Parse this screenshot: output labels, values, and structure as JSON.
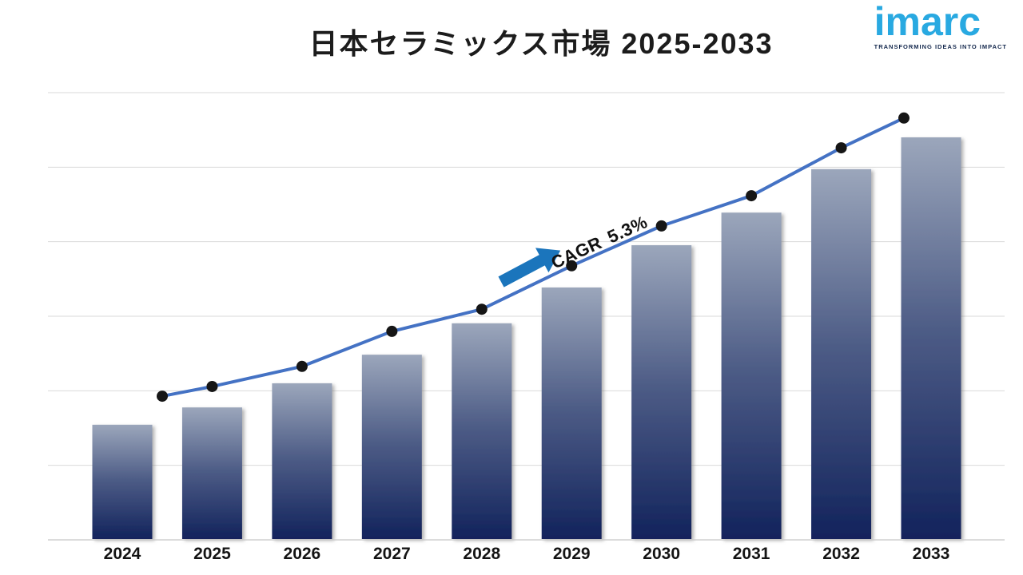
{
  "header": {
    "title": "日本セラミックス市場 2025-2033",
    "logo": {
      "text": "imarc",
      "tagline": "TRANSFORMING IDEAS INTO IMPACT",
      "text_color": "#29a9e1",
      "tagline_color": "#15294e"
    }
  },
  "chart_data": {
    "type": "bar",
    "subtype": "bar-with-line-overlay",
    "title": "日本セラミックス市場 2025-2033",
    "categories": [
      "2024",
      "2025",
      "2026",
      "2027",
      "2028",
      "2029",
      "2030",
      "2031",
      "2032",
      "2033"
    ],
    "series": [
      {
        "name": "market-size-bars",
        "type": "bar",
        "values_percent_of_max": [
          28.6,
          32.9,
          38.9,
          46.0,
          53.8,
          62.7,
          73.2,
          81.3,
          92.1,
          100.0
        ]
      },
      {
        "name": "growth-trend-line",
        "type": "line",
        "values_percent_of_max": [
          35.7,
          38.1,
          43.1,
          51.8,
          57.3,
          68.1,
          78.0,
          85.5,
          97.4,
          104.8
        ]
      }
    ],
    "annotation": {
      "text": "CAGR 5.3%",
      "has_arrow": true
    },
    "xlabel": "",
    "ylabel": "",
    "y_axis_tick_labels_visible": false,
    "values_unit": "relative (no numeric axis shown in image)",
    "gridlines": true,
    "legend": "none",
    "colors": {
      "bar_gradient_top": "#9ba6bb",
      "bar_gradient_mid": "#4d5c86",
      "bar_gradient_bottom": "#12235c",
      "line": "#4472c4",
      "marker": "#161616",
      "arrow": "#1b75bc",
      "gridline": "#d9d9d9",
      "axis_line": "#c8c8c8",
      "axis_label": "#141414",
      "annotation_text": "#111111",
      "title": "#1c1c1c"
    }
  }
}
